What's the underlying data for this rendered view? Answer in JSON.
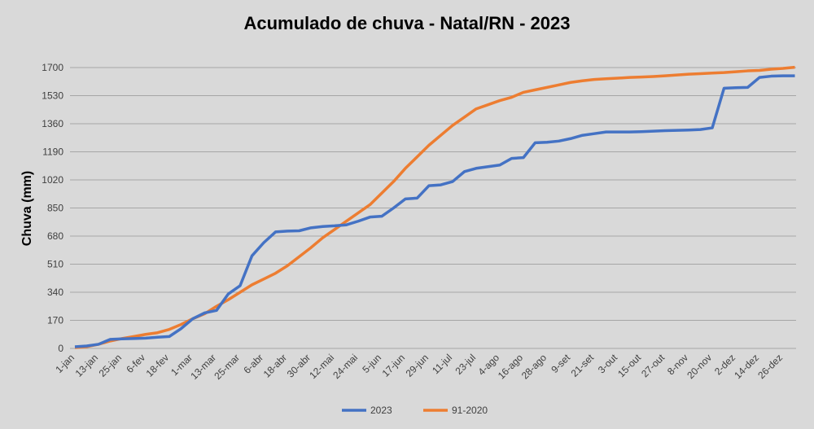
{
  "chart_data": {
    "type": "line",
    "title": "Acumulado de chuva - Natal/RN - 2023",
    "y_label": "Chuva (mm)",
    "categories": [
      "1-jan",
      null,
      "13-jan",
      null,
      "25-jan",
      null,
      "6-fev",
      null,
      "18-fev",
      null,
      "1-mar",
      null,
      "13-mar",
      null,
      "25-mar",
      null,
      "6-abr",
      null,
      "18-abr",
      null,
      "30-abr",
      null,
      "12-mai",
      null,
      "24-mai",
      null,
      "5-jun",
      null,
      "17-jun",
      null,
      "29-jun",
      null,
      "11-jul",
      null,
      "23-jul",
      null,
      "4-ago",
      null,
      "16-ago",
      null,
      "28-ago",
      null,
      "9-set",
      null,
      "21-set",
      null,
      "3-out",
      null,
      "15-out",
      null,
      "27-out",
      null,
      "8-nov",
      null,
      "20-nov",
      null,
      "2-dez",
      null,
      "14-dez",
      null,
      "26-dez",
      null
    ],
    "series": [
      {
        "name": "2023",
        "color": "#4472c4",
        "values": [
          10,
          15,
          25,
          55,
          58,
          60,
          62,
          68,
          72,
          120,
          180,
          215,
          230,
          330,
          380,
          560,
          640,
          705,
          710,
          712,
          730,
          738,
          742,
          748,
          770,
          795,
          800,
          850,
          905,
          910,
          985,
          990,
          1010,
          1070,
          1090,
          1100,
          1110,
          1150,
          1155,
          1245,
          1248,
          1255,
          1270,
          1290,
          1300,
          1310,
          1310,
          1310,
          1312,
          1315,
          1318,
          1320,
          1322,
          1325,
          1335,
          1575,
          1578,
          1580,
          1640,
          1648,
          1650,
          1650
        ]
      },
      {
        "name": "91-2020",
        "color": "#ed7d31",
        "values": [
          5,
          10,
          25,
          45,
          60,
          72,
          85,
          95,
          115,
          145,
          180,
          210,
          255,
          295,
          340,
          385,
          420,
          455,
          500,
          555,
          610,
          670,
          720,
          770,
          820,
          870,
          940,
          1010,
          1090,
          1160,
          1230,
          1290,
          1350,
          1400,
          1450,
          1475,
          1500,
          1520,
          1550,
          1565,
          1580,
          1595,
          1610,
          1620,
          1628,
          1632,
          1636,
          1640,
          1643,
          1646,
          1650,
          1655,
          1660,
          1663,
          1667,
          1670,
          1675,
          1680,
          1683,
          1690,
          1695,
          1702
        ]
      }
    ],
    "ylim": [
      0,
      1700
    ],
    "yticks": [
      0,
      170,
      340,
      510,
      680,
      850,
      1020,
      1190,
      1360,
      1530,
      1700
    ],
    "grid": true,
    "legend": "bottom"
  }
}
